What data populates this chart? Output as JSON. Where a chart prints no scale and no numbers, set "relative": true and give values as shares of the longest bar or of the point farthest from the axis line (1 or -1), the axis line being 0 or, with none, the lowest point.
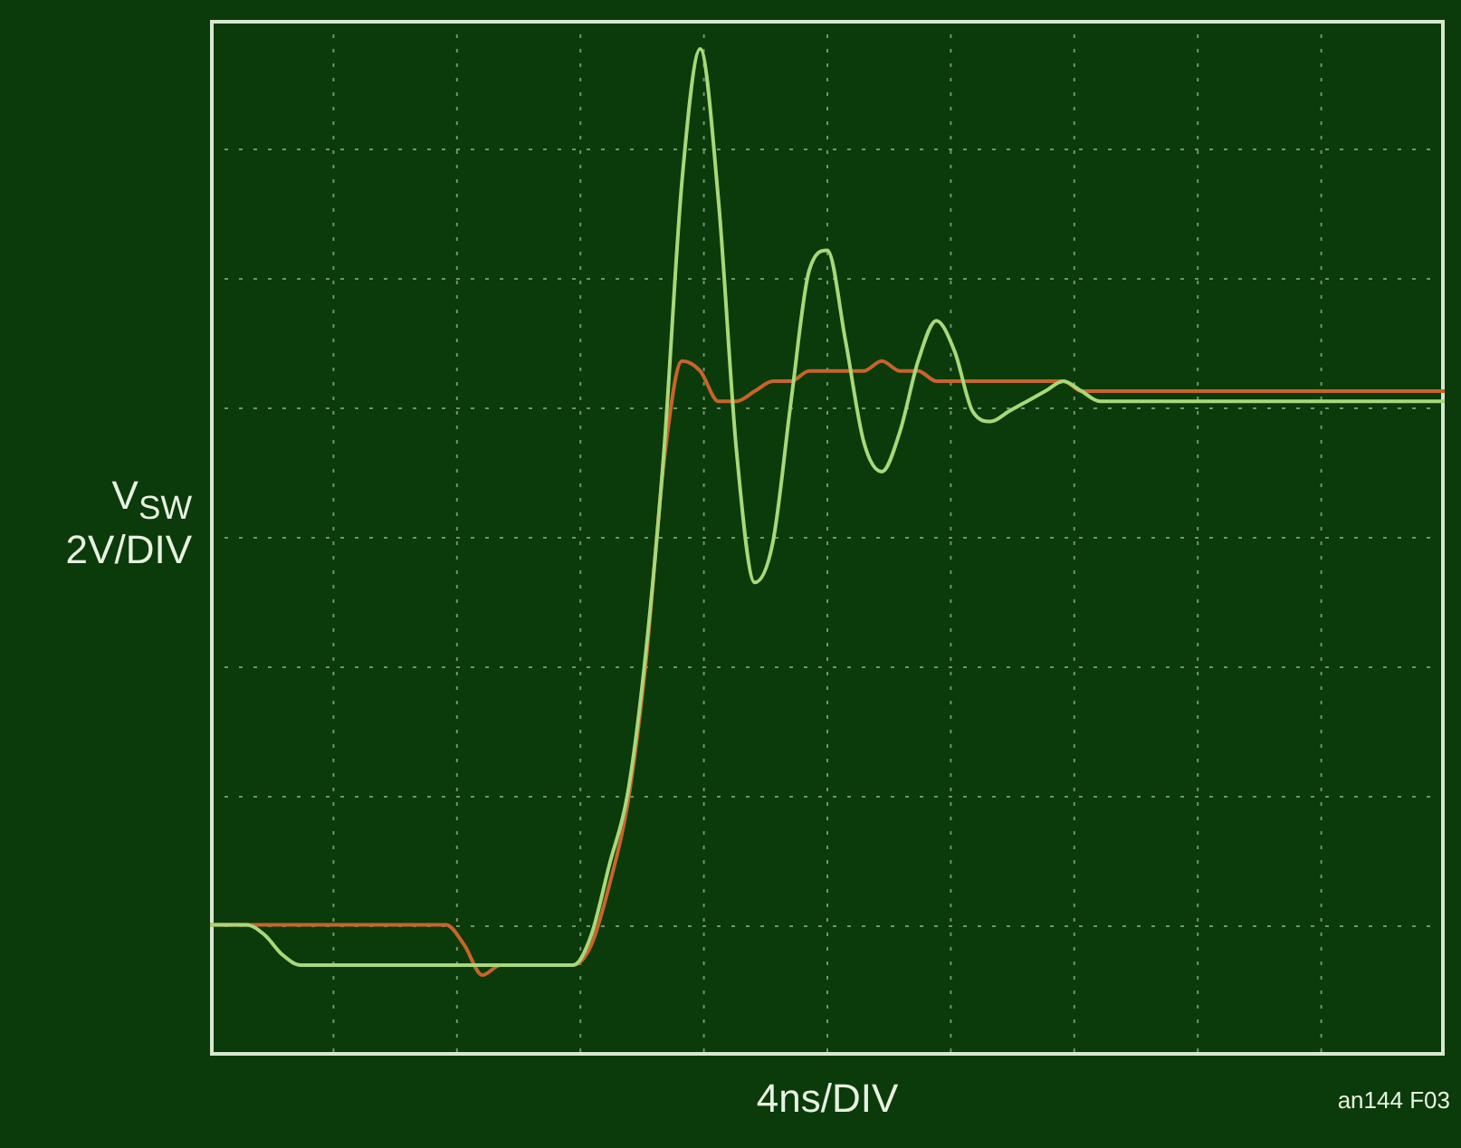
{
  "chart_data": {
    "type": "line",
    "relative": true,
    "ylabel": "V$_{SW}$ 2V/DIV",
    "xlabel": "4ns/DIV",
    "annotations": [
      "an144 F03"
    ],
    "grid": true,
    "legend": false,
    "marker": "none",
    "categories": [
      null,
      null,
      null,
      null,
      null,
      null,
      null,
      null,
      null,
      null,
      null,
      null,
      null,
      null,
      null,
      null,
      null,
      null,
      null,
      null,
      null,
      null,
      null,
      null,
      null,
      null,
      null,
      null,
      null,
      null,
      null,
      null,
      null,
      null,
      null,
      null,
      null,
      null,
      null,
      null,
      null,
      null,
      null,
      null,
      null,
      null,
      null,
      null,
      null,
      null,
      null,
      null,
      null,
      null,
      null,
      null,
      null,
      null,
      null,
      null,
      null,
      null,
      null,
      null,
      null,
      null,
      null,
      null,
      null
    ],
    "series": [
      {
        "color": "#a8d878",
        "values": [
          0.13,
          0.13,
          0.13,
          0.12,
          0.1,
          0.09,
          0.09,
          0.09,
          0.09,
          0.09,
          0.09,
          0.09,
          0.09,
          0.09,
          0.09,
          0.09,
          0.09,
          0.09,
          0.09,
          0.09,
          0.09,
          0.12,
          0.19,
          0.26,
          0.4,
          0.6,
          0.87,
          1.0,
          0.85,
          0.6,
          0.47,
          0.51,
          0.65,
          0.78,
          0.8,
          0.71,
          0.61,
          0.58,
          0.62,
          0.69,
          0.73,
          0.7,
          0.64,
          0.63,
          0.64,
          0.65,
          0.66,
          0.67,
          0.66,
          0.65,
          0.65,
          0.65,
          0.65,
          0.65,
          0.65,
          0.65,
          0.65,
          0.65,
          0.65,
          0.65,
          0.65,
          0.65,
          0.65,
          0.65,
          0.65,
          0.65,
          0.65,
          0.65,
          0.65
        ]
      },
      {
        "color": "#c8642a",
        "values": [
          0.13,
          0.13,
          0.13,
          0.13,
          0.13,
          0.13,
          0.13,
          0.13,
          0.13,
          0.13,
          0.13,
          0.13,
          0.13,
          0.13,
          0.11,
          0.08,
          0.09,
          0.09,
          0.09,
          0.09,
          0.09,
          0.11,
          0.17,
          0.25,
          0.39,
          0.59,
          0.69,
          0.68,
          0.65,
          0.65,
          0.66,
          0.67,
          0.67,
          0.68,
          0.68,
          0.68,
          0.68,
          0.69,
          0.68,
          0.68,
          0.67,
          0.67,
          0.67,
          0.67,
          0.67,
          0.67,
          0.67,
          0.67,
          0.66,
          0.66,
          0.66,
          0.66,
          0.66,
          0.66,
          0.66,
          0.66,
          0.66,
          0.66,
          0.66,
          0.66,
          0.66,
          0.66,
          0.66,
          0.66,
          0.66,
          0.66,
          0.66,
          0.66,
          0.66
        ]
      }
    ]
  }
}
